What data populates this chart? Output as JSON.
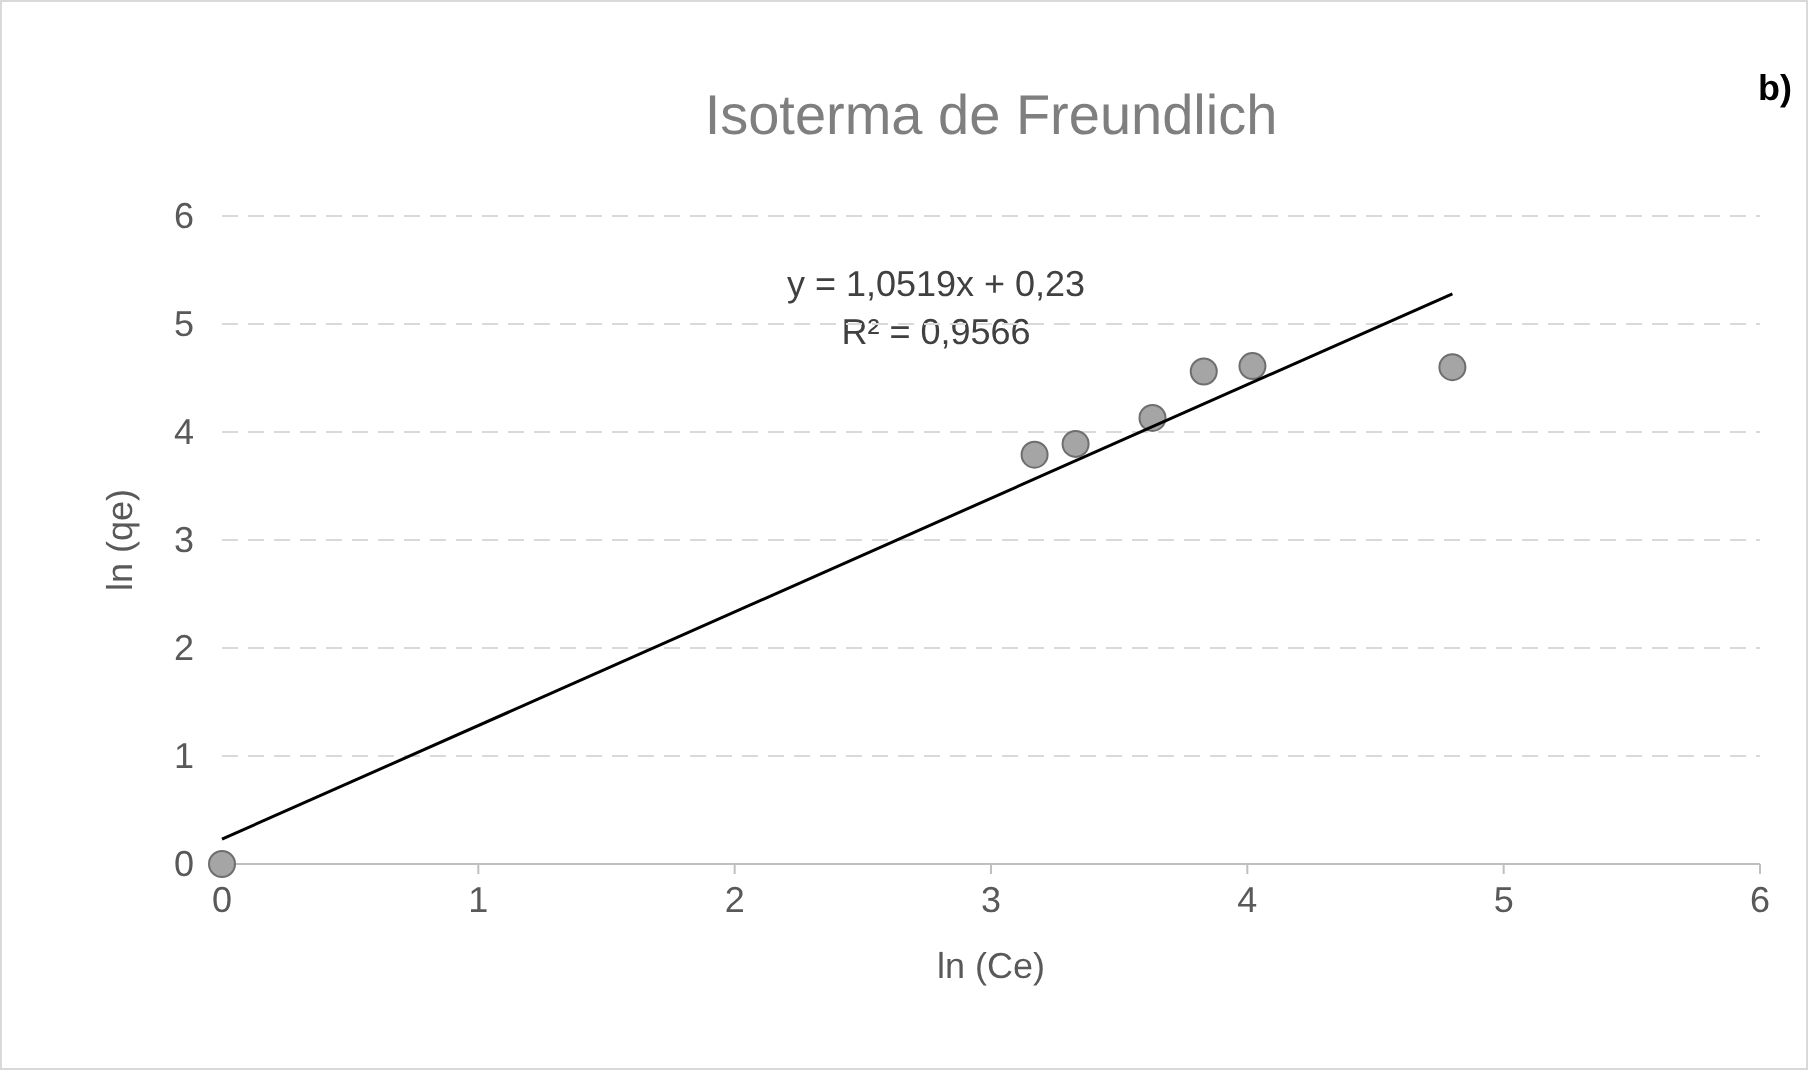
{
  "chart_data": {
    "type": "scatter",
    "title": "Isoterma de Freundlich",
    "xlabel": "ln (Ce)",
    "ylabel": "ln (qe)",
    "xlim": [
      0,
      6
    ],
    "ylim": [
      0,
      6
    ],
    "xticks": [
      0,
      1,
      2,
      3,
      4,
      5,
      6
    ],
    "yticks": [
      0,
      1,
      2,
      3,
      4,
      5,
      6
    ],
    "grid": "y",
    "marker": "circle",
    "series": [
      {
        "color": "#a5a5a5",
        "x": [
          0,
          3.17,
          3.33,
          3.63,
          3.83,
          4.02,
          4.8
        ],
        "values": [
          0,
          3.79,
          3.89,
          4.13,
          4.56,
          4.61,
          4.6
        ]
      },
      {
        "type": "line",
        "color": "#000000",
        "marker": "none",
        "line_style": "solid",
        "x": [
          0,
          4.8
        ],
        "values": [
          0.23,
          5.28
        ]
      }
    ],
    "annotations": [
      "y = 1,0519x + 0,23",
      "R² = 0,9566",
      "b)"
    ]
  }
}
